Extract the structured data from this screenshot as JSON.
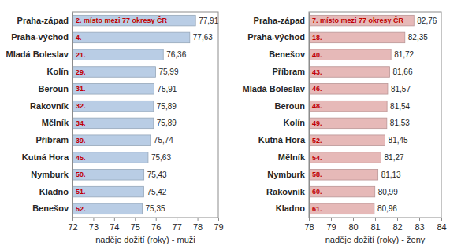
{
  "chart_data": [
    {
      "type": "bar",
      "orientation": "horizontal",
      "categories": [
        "Praha-západ",
        "Praha-východ",
        "Mladá Boleslav",
        "Kolín",
        "Beroun",
        "Rakovník",
        "Mělník",
        "Příbram",
        "Kutná Hora",
        "Nymburk",
        "Kladno",
        "Benešov"
      ],
      "values": [
        77.91,
        77.63,
        76.36,
        75.99,
        75.91,
        75.89,
        75.89,
        75.74,
        75.63,
        75.43,
        75.42,
        75.35
      ],
      "value_labels": [
        "77,91",
        "77,63",
        "76,36",
        "75,99",
        "75,91",
        "75,89",
        "75,89",
        "75,74",
        "75,63",
        "75,43",
        "75,42",
        "75,35"
      ],
      "annotations": [
        "2. místo mezi 77 okresy ČR",
        "4.",
        "21.",
        "29.",
        "31.",
        "32.",
        "34.",
        "39.",
        "45.",
        "50.",
        "51.",
        "52."
      ],
      "x_label": "naděje dožití (roky) - muži",
      "xlim": [
        72,
        79
      ],
      "xticks": [
        72,
        73,
        74,
        75,
        76,
        77,
        78,
        79
      ],
      "color": "#b9cde5",
      "data_labels": true,
      "grid": false
    },
    {
      "type": "bar",
      "orientation": "horizontal",
      "categories": [
        "Praha-západ",
        "Praha-východ",
        "Benešov",
        "Příbram",
        "Mladá Boleslav",
        "Beroun",
        "Kolín",
        "Kutná Hora",
        "Mělník",
        "Nymburk",
        "Rakovník",
        "Kladno"
      ],
      "values": [
        82.76,
        82.35,
        81.72,
        81.66,
        81.57,
        81.54,
        81.53,
        81.45,
        81.27,
        81.13,
        80.99,
        80.96
      ],
      "value_labels": [
        "82,76",
        "82,35",
        "81,72",
        "81,66",
        "81,57",
        "81,54",
        "81,53",
        "81,45",
        "81,27",
        "81,13",
        "80,99",
        "80,96"
      ],
      "annotations": [
        "7. místo mezi 77 okresy ČR",
        "18.",
        "40.",
        "43.",
        "46.",
        "48.",
        "49.",
        "52.",
        "54.",
        "58.",
        "60.",
        "61."
      ],
      "x_label": "naděje dožití (roky) - ženy",
      "xlim": [
        78,
        84
      ],
      "xticks": [
        78,
        79,
        80,
        81,
        82,
        83,
        84
      ],
      "color": "#e6b9b8",
      "data_labels": true,
      "grid": false
    }
  ]
}
